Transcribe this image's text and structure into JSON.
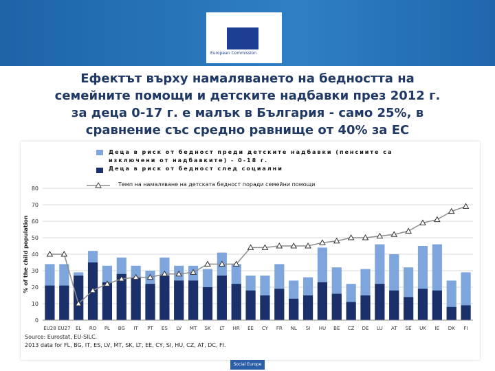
{
  "header": {
    "logo_text": "European Commission"
  },
  "title_lines": [
    "Ефектът върху намаляването на бедността на",
    "семейните помощи и детските надбавки през 2012 г.",
    "за деца 0-17 г. е малък в България - само 25%, в",
    "сравнение със средно равнище от 40% за ЕС"
  ],
  "chart_data": {
    "type": "bar",
    "y_label": "% of the child population",
    "categories": [
      "EU28",
      "EU27",
      "EL",
      "RO",
      "PL",
      "BG",
      "IT",
      "PT",
      "ES",
      "LV",
      "MT",
      "SK",
      "LT",
      "HR",
      "EE",
      "CY",
      "FR",
      "NL",
      "SI",
      "HU",
      "BE",
      "CZ",
      "DE",
      "LU",
      "AT",
      "SE",
      "UK",
      "IE",
      "DK",
      "FI"
    ],
    "series": [
      {
        "name": "Деца в риск от бедност преди детските надбавки (пенсиите са изключени от надбавките) - 0-18 г.",
        "color": "#7fa6dc",
        "type": "bar",
        "values": [
          34,
          34,
          29,
          42,
          33,
          38,
          33,
          30,
          38,
          33,
          33,
          31,
          41,
          34,
          27,
          27,
          34,
          24,
          26,
          44,
          32,
          22,
          31,
          46,
          40,
          32,
          45,
          46,
          24,
          29
        ]
      },
      {
        "name": "Деца в риск от бедност след социални",
        "color": "#1b2f6b",
        "type": "bar",
        "values": [
          21,
          21,
          27,
          35,
          23,
          28,
          26,
          22,
          27,
          24,
          24,
          20,
          27,
          22,
          18,
          15,
          19,
          13,
          15,
          23,
          16,
          11,
          15,
          22,
          18,
          14,
          19,
          18,
          8,
          9
        ]
      },
      {
        "name": "Темп на намаляване на детската бедност поради семейни помощи",
        "color": "#8c8c8c",
        "type": "line",
        "values": [
          40,
          40,
          10,
          18,
          22,
          25,
          26,
          26,
          28,
          28,
          29,
          34,
          34,
          34,
          44,
          44,
          45,
          45,
          45,
          47,
          48,
          50,
          50,
          51,
          52,
          54,
          59,
          61,
          66,
          69
        ]
      }
    ],
    "ylim": [
      0,
      80
    ],
    "yticks": [
      0,
      10,
      20,
      30,
      40,
      50,
      60,
      70,
      80
    ],
    "grid": true,
    "source": "Source: Eurostat, EU-SILC.",
    "note": "2013 data for FL, BG, IT, ES, LV, MT, SK, LT, EE, CY, SI, HU, CZ, AT, DC, FI."
  },
  "footer": "Social Europe"
}
